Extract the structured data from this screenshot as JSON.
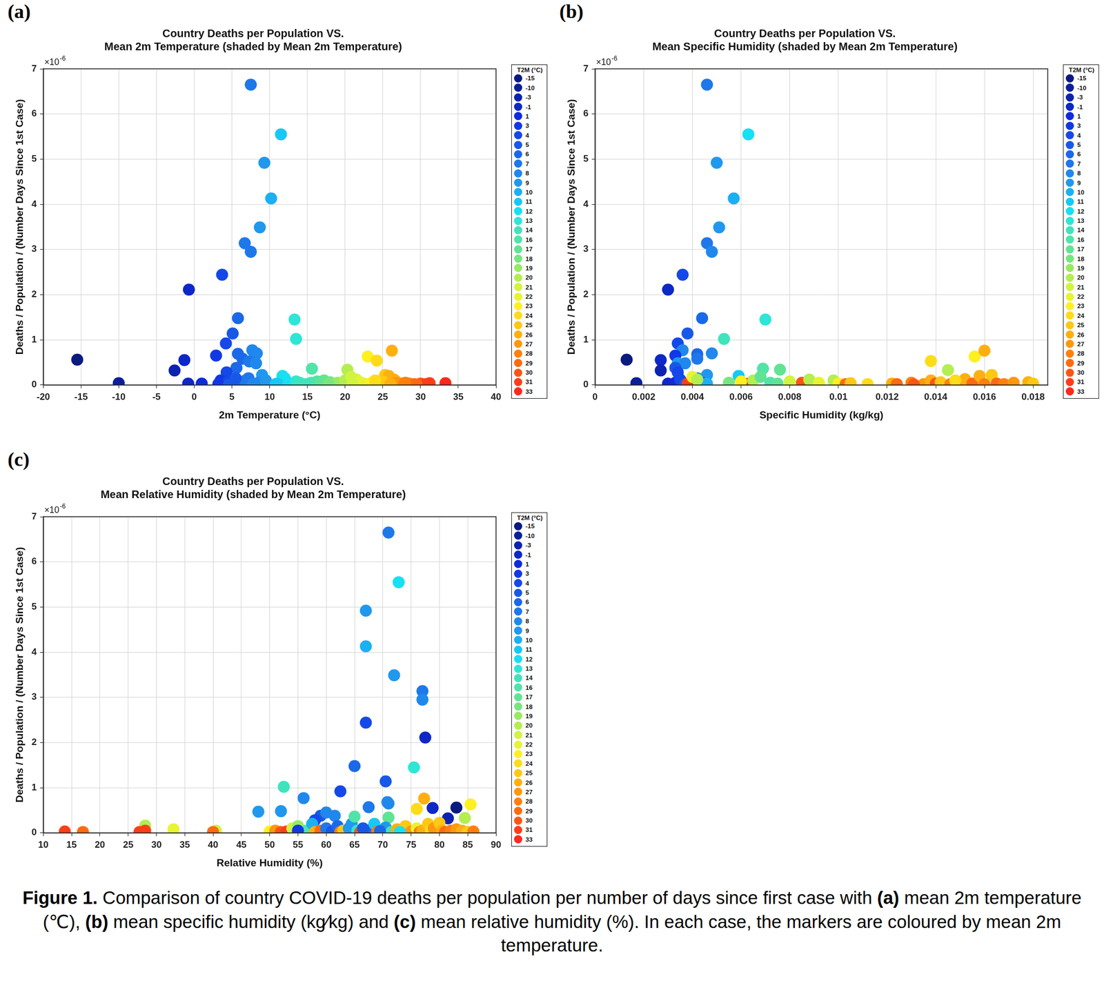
{
  "chart_data": [
    {
      "panel_label": "(a)",
      "type": "scatter",
      "marker": "circle",
      "grid": true,
      "title": [
        "Country Deaths per Population VS.",
        "Mean 2m Temperature (shaded by Mean 2m Temperature)"
      ],
      "x_label": "2m Temperature (°C)",
      "y_label": "Deaths / Population / (Number Days Since 1st Case)",
      "y_multiplier": {
        "base": "×10",
        "exponent": "-6"
      },
      "xlim": [
        -20,
        40
      ],
      "xticks": [
        -20,
        -15,
        -10,
        -5,
        0,
        5,
        10,
        15,
        20,
        25,
        30,
        35,
        40
      ],
      "ylim": [
        0,
        7e-06
      ],
      "yticks": [
        0,
        {
          "value": 1e-06,
          "label": "1"
        },
        {
          "value": 2e-06,
          "label": "2"
        },
        {
          "value": 3e-06,
          "label": "3"
        },
        {
          "value": 4e-06,
          "label": "4"
        },
        {
          "value": 5e-06,
          "label": "5"
        },
        {
          "value": 6e-06,
          "label": "6"
        },
        {
          "value": 7e-06,
          "label": "7"
        }
      ],
      "x": [
        7.5,
        11.5,
        9.3,
        10.2,
        8.7,
        6.7,
        7.5,
        3.7,
        -0.7,
        13.3,
        5.8,
        13.5,
        5.1,
        4.2,
        7.7,
        8.3,
        2.9,
        5.8,
        6.4,
        -1.3,
        -15.5,
        -2.6,
        7.3,
        8.2,
        5.6,
        4.3,
        9.0,
        15.6,
        20.3,
        23,
        24.2,
        26.2,
        11.7,
        12,
        -10,
        -0.8,
        1,
        3.5,
        4.5,
        5,
        6.2,
        6.8,
        7.2,
        7.8,
        8.5,
        11,
        12.5,
        13.5,
        14,
        15.5,
        16.3,
        17.2,
        18,
        19,
        20,
        20.8,
        21.5,
        22,
        22.5,
        23.5,
        24.5,
        25.3,
        25.8,
        26.5,
        26.8,
        27.2,
        27.8,
        28.5,
        29.2,
        30,
        30.7,
        31.2,
        33.3,
        25,
        26,
        28,
        29.5,
        31,
        24,
        16.8,
        17.8,
        14.8,
        3.2,
        4.6,
        5.5,
        9.5,
        10.8,
        21
      ],
      "values": [
        6.65e-06,
        5.55e-06,
        4.92e-06,
        4.13e-06,
        3.49e-06,
        3.14e-06,
        2.95e-06,
        2.44e-06,
        2.11e-06,
        1.45e-06,
        1.48e-06,
        1.02e-06,
        1.14e-06,
        9.2e-07,
        7.7e-07,
        7e-07,
        6.5e-07,
        6.9e-07,
        5.8e-07,
        5.5e-07,
        5.6e-07,
        3.2e-07,
        5.2e-07,
        4.8e-07,
        3.8e-07,
        2.8e-07,
        2.2e-07,
        3.6e-07,
        3.4e-07,
        6.3e-07,
        5.4e-07,
        7.6e-07,
        2e-07,
        1.5e-07,
        4e-08,
        3e-08,
        3e-08,
        1e-07,
        8e-08,
        2e-08,
        5e-08,
        1e-07,
        1.5e-07,
        2e-08,
        5e-08,
        3e-08,
        5e-08,
        8e-08,
        5e-08,
        5e-08,
        8e-08,
        1e-07,
        6e-08,
        5e-08,
        1e-07,
        1.8e-07,
        1.2e-07,
        6e-08,
        3e-08,
        5e-08,
        2e-08,
        2.2e-07,
        2e-07,
        1.2e-07,
        5e-08,
        4e-08,
        2e-08,
        3e-08,
        2e-08,
        3e-08,
        2e-08,
        4e-08,
        4e-08,
        8e-08,
        2e-08,
        5e-08,
        1e-08,
        1e-08,
        1e-07,
        2e-08,
        2e-08,
        2e-08,
        2e-08,
        1e-08,
        1.5e-07,
        1e-07,
        2e-08,
        2e-08
      ],
      "shade_values": [
        7.5,
        11.5,
        9.3,
        10.2,
        8.7,
        6.7,
        7.5,
        3.7,
        -0.7,
        13.3,
        5.8,
        13.5,
        5.1,
        4.2,
        7.7,
        8.3,
        2.9,
        5.8,
        6.4,
        -1.3,
        -15.5,
        -2.6,
        7.3,
        8.2,
        5.6,
        4.3,
        9.0,
        15.6,
        20.3,
        23,
        24.2,
        26.2,
        11.7,
        12,
        -10,
        -0.8,
        1,
        3.5,
        4.5,
        5,
        6.2,
        6.8,
        7.2,
        7.8,
        8.5,
        11,
        12.5,
        13.5,
        14,
        15.5,
        16.3,
        17.2,
        18,
        19,
        20,
        20.8,
        21.5,
        22,
        22.5,
        23.5,
        24.5,
        25.3,
        25.8,
        26.5,
        26.8,
        27.2,
        27.8,
        28.5,
        29.2,
        30,
        30.7,
        31.2,
        33.3,
        25,
        26,
        28,
        29.5,
        31,
        24,
        16.8,
        17.8,
        14.8,
        3.2,
        4.6,
        5.5,
        9.5,
        10.8,
        21
      ]
    },
    {
      "panel_label": "(b)",
      "type": "scatter",
      "marker": "circle",
      "grid": true,
      "title": [
        "Country Deaths per Population VS.",
        "Mean Specific Humidity (shaded by Mean 2m Temperature)"
      ],
      "x_label": "Specific Humidity (kg/kg)",
      "y_label": "Deaths / Population / (Number Days Since 1st Case)",
      "y_multiplier": {
        "base": "×10",
        "exponent": "-6"
      },
      "xlim": [
        0,
        0.0186
      ],
      "xticks": [
        0,
        0.002,
        0.004,
        0.006,
        0.008,
        0.01,
        0.012,
        0.014,
        0.016,
        0.018
      ],
      "ylim": [
        0,
        7e-06
      ],
      "yticks": [
        0,
        {
          "value": 1e-06,
          "label": "1"
        },
        {
          "value": 2e-06,
          "label": "2"
        },
        {
          "value": 3e-06,
          "label": "3"
        },
        {
          "value": 4e-06,
          "label": "4"
        },
        {
          "value": 5e-06,
          "label": "5"
        },
        {
          "value": 6e-06,
          "label": "6"
        },
        {
          "value": 7e-06,
          "label": "7"
        }
      ],
      "x": [
        0.0046,
        0.0063,
        0.005,
        0.0057,
        0.0051,
        0.0046,
        0.0048,
        0.0036,
        0.003,
        0.007,
        0.0044,
        0.0053,
        0.0038,
        0.0034,
        0.0036,
        0.0048,
        0.0033,
        0.0042,
        0.0042,
        0.0027,
        0.0013,
        0.0027,
        0.0034,
        0.0037,
        0.0033,
        0.0034,
        0.0046,
        0.0069,
        0.0076,
        0.0138,
        0.0156,
        0.016,
        0.0145,
        0.0059,
        0.0017,
        0.003,
        0.0033,
        0.0035,
        0.0037,
        0.004,
        0.0042,
        0.0044,
        0.0046,
        0.0038,
        0.0063,
        0.0085,
        0.004,
        0.0042,
        0.0055,
        0.006,
        0.0065,
        0.0068,
        0.0072,
        0.0075,
        0.008,
        0.0088,
        0.0092,
        0.0098,
        0.01,
        0.0103,
        0.0105,
        0.0112,
        0.0122,
        0.0124,
        0.013,
        0.0135,
        0.0138,
        0.014,
        0.0142,
        0.0146,
        0.015,
        0.0152,
        0.0155,
        0.0158,
        0.016,
        0.0163,
        0.0165,
        0.0168,
        0.0172,
        0.0178,
        0.018,
        0.0148,
        0.0131
      ],
      "values": [
        6.65e-06,
        5.55e-06,
        4.92e-06,
        4.13e-06,
        3.49e-06,
        3.14e-06,
        2.95e-06,
        2.44e-06,
        2.11e-06,
        1.45e-06,
        1.48e-06,
        1.02e-06,
        1.14e-06,
        9.2e-07,
        7.7e-07,
        7e-07,
        6.5e-07,
        6.8e-07,
        5.8e-07,
        5.5e-07,
        5.6e-07,
        3.2e-07,
        4.8e-07,
        4.8e-07,
        3.8e-07,
        2.8e-07,
        2.2e-07,
        3.6e-07,
        3.4e-07,
        5.3e-07,
        6.3e-07,
        7.6e-07,
        3.3e-07,
        2e-07,
        4e-08,
        3e-08,
        5e-08,
        1.2e-07,
        2e-08,
        1e-07,
        1.5e-07,
        5e-08,
        3e-08,
        3e-08,
        3e-08,
        5e-08,
        1.8e-07,
        1.2e-07,
        5e-08,
        8e-08,
        1e-07,
        1.8e-07,
        5e-08,
        3e-08,
        8e-08,
        1.2e-07,
        5e-08,
        1e-07,
        3e-08,
        2e-08,
        4e-08,
        2e-08,
        3e-08,
        2e-08,
        5e-08,
        2e-08,
        1e-07,
        3e-08,
        6e-08,
        2e-08,
        5e-08,
        1.3e-07,
        3e-08,
        2e-07,
        2e-08,
        2.2e-07,
        3e-08,
        2e-08,
        5e-08,
        6e-08,
        3e-08,
        1e-07,
        1e-08
      ],
      "shade_values": [
        7,
        12,
        9,
        10,
        9,
        7,
        8,
        4,
        -1,
        13,
        6,
        14,
        5,
        4,
        8,
        8,
        3,
        6,
        7,
        -1,
        -15,
        -3,
        9,
        8,
        5,
        4,
        9,
        16,
        17,
        24,
        23,
        26,
        20,
        11,
        -10,
        -1,
        1,
        4,
        5,
        7,
        8,
        6,
        10,
        31,
        31,
        30,
        22,
        20,
        18,
        23,
        20,
        17,
        16,
        17,
        21,
        20,
        22,
        20,
        23,
        29,
        25,
        24,
        26,
        29,
        28,
        27,
        26,
        30,
        25,
        28,
        27,
        26,
        29,
        26,
        28,
        25,
        29,
        28,
        27,
        26,
        25,
        24,
        30
      ]
    },
    {
      "panel_label": "(c)",
      "type": "scatter",
      "marker": "circle",
      "grid": true,
      "title": [
        "Country Deaths per Population VS.",
        "Mean Relative Humidity (shaded by Mean 2m Temperature)"
      ],
      "x_label": "Relative Humidity (%)",
      "y_label": "Deaths / Population / (Number Days Since 1st Case)",
      "y_multiplier": {
        "base": "×10",
        "exponent": "-6"
      },
      "xlim": [
        10,
        90
      ],
      "xticks": [
        10,
        15,
        20,
        25,
        30,
        35,
        40,
        45,
        50,
        55,
        60,
        65,
        70,
        75,
        80,
        85,
        90
      ],
      "ylim": [
        0,
        7e-06
      ],
      "yticks": [
        0,
        {
          "value": 1e-06,
          "label": "1"
        },
        {
          "value": 2e-06,
          "label": "2"
        },
        {
          "value": 3e-06,
          "label": "3"
        },
        {
          "value": 4e-06,
          "label": "4"
        },
        {
          "value": 5e-06,
          "label": "5"
        },
        {
          "value": 6e-06,
          "label": "6"
        },
        {
          "value": 7e-06,
          "label": "7"
        }
      ],
      "x": [
        71,
        72.8,
        67,
        67,
        72,
        77,
        77,
        67,
        77.5,
        75.5,
        65,
        52.5,
        70.5,
        62.5,
        56,
        71,
        70.8,
        78.8,
        83,
        81.5,
        67.5,
        52,
        48,
        59,
        60,
        61.5,
        58,
        64.5,
        65,
        71,
        77.3,
        76,
        85.5,
        84.5,
        28,
        33,
        40.5,
        13.8,
        17,
        27,
        28,
        40,
        50,
        51,
        52,
        53,
        54,
        55,
        56.5,
        57.5,
        58,
        59,
        60,
        61,
        62,
        62.5,
        63,
        64,
        65.5,
        66,
        67,
        68,
        68.5,
        69,
        70,
        70.5,
        71.5,
        72.5,
        73.5,
        74,
        75,
        76,
        76.5,
        77,
        78,
        78.5,
        79,
        80,
        80.5,
        81,
        82,
        83,
        84,
        85,
        86,
        66.5,
        69.5,
        55,
        73
      ],
      "values": [
        6.65e-06,
        5.55e-06,
        4.92e-06,
        4.13e-06,
        3.49e-06,
        3.14e-06,
        2.95e-06,
        2.44e-06,
        2.11e-06,
        1.45e-06,
        1.48e-06,
        1.02e-06,
        1.14e-06,
        9.2e-07,
        7.7e-07,
        6.5e-07,
        6.8e-07,
        5.5e-07,
        5.6e-07,
        3.2e-07,
        5.7e-07,
        4.8e-07,
        4.7e-07,
        3.8e-07,
        4.5e-07,
        3.8e-07,
        2.8e-07,
        2e-07,
        3.6e-07,
        3.4e-07,
        7.6e-07,
        5.3e-07,
        6.3e-07,
        3.3e-07,
        1.6e-07,
        8e-08,
        5e-08,
        3e-08,
        2e-08,
        2e-08,
        5e-08,
        2e-08,
        3e-08,
        5e-08,
        2e-08,
        3e-08,
        1e-07,
        1.5e-07,
        5e-08,
        2e-07,
        2e-08,
        5e-08,
        1e-07,
        3e-08,
        1.5e-07,
        2e-08,
        5e-08,
        1e-07,
        5e-08,
        2e-08,
        3e-08,
        8e-08,
        2e-07,
        3e-08,
        5e-08,
        1.2e-07,
        2e-08,
        8e-08,
        5e-08,
        1.5e-07,
        3e-08,
        1e-07,
        2e-08,
        5e-08,
        2e-07,
        5e-08,
        1e-07,
        2.2e-07,
        5e-08,
        2e-08,
        5e-08,
        8e-08,
        5e-08,
        2e-08,
        3e-08,
        1e-07,
        4e-08,
        5e-08,
        2e-08
      ],
      "shade_values": [
        7,
        12,
        9,
        10,
        9,
        7,
        8,
        4,
        -1,
        13,
        6,
        14,
        5,
        4,
        8,
        8,
        8,
        -1,
        -15,
        -3,
        7,
        9,
        9,
        5,
        8,
        8,
        4,
        9,
        16,
        17,
        26,
        24,
        23,
        20,
        20,
        22,
        21,
        31,
        29,
        31,
        31,
        29,
        23,
        27,
        30,
        31,
        21,
        19,
        16,
        10,
        26,
        29,
        7,
        5,
        6,
        28,
        25,
        9,
        13,
        30,
        29,
        6,
        11,
        28,
        31,
        9,
        14,
        26,
        23,
        25,
        27,
        22,
        28,
        26,
        25,
        24,
        27,
        25,
        26,
        29,
        28,
        27,
        26,
        25,
        28,
        5,
        6,
        3,
        12
      ]
    }
  ],
  "colorbar": {
    "title": "T2M (°C)",
    "values": [
      -15,
      -10,
      -3,
      -1,
      1,
      3,
      4,
      5,
      6,
      7,
      8,
      9,
      10,
      11,
      12,
      13,
      14,
      16,
      17,
      18,
      19,
      20,
      21,
      22,
      23,
      24,
      25,
      26,
      27,
      28,
      29,
      30,
      31,
      33
    ],
    "colors": [
      "#0b1a80",
      "#0c1f99",
      "#0d23b0",
      "#0e27c8",
      "#0f2bdd",
      "#1238e6",
      "#1548e8",
      "#1858e8",
      "#1b68e8",
      "#1e78ea",
      "#2088ec",
      "#2098ee",
      "#1cb0f2",
      "#18c8f4",
      "#16e0f2",
      "#2ee6d6",
      "#40e4bc",
      "#50e4a8",
      "#60e494",
      "#78e680",
      "#98ea64",
      "#b4ee50",
      "#d0f440",
      "#e8f430",
      "#fff020",
      "#ffdc18",
      "#ffc814",
      "#ffb010",
      "#ff980e",
      "#ff800e",
      "#ff6a10",
      "#ff5414",
      "#ff3e18",
      "#ff281c"
    ]
  },
  "caption": {
    "segments": [
      {
        "text": "Figure 1.",
        "bold": true
      },
      {
        "text": " Comparison of country COVID-19 deaths per population per number of days since first case with ",
        "bold": false
      },
      {
        "text": "(a)",
        "bold": true
      },
      {
        "text": " mean 2m temperature (℃), ",
        "bold": false
      },
      {
        "text": "(b)",
        "bold": true
      },
      {
        "text": " mean specific humidity (kg⁄kg) and ",
        "bold": false
      },
      {
        "text": "(c)",
        "bold": true
      },
      {
        "text": " mean relative humidity (%). In each case, the markers are coloured by mean 2m temperature.",
        "bold": false
      }
    ]
  }
}
